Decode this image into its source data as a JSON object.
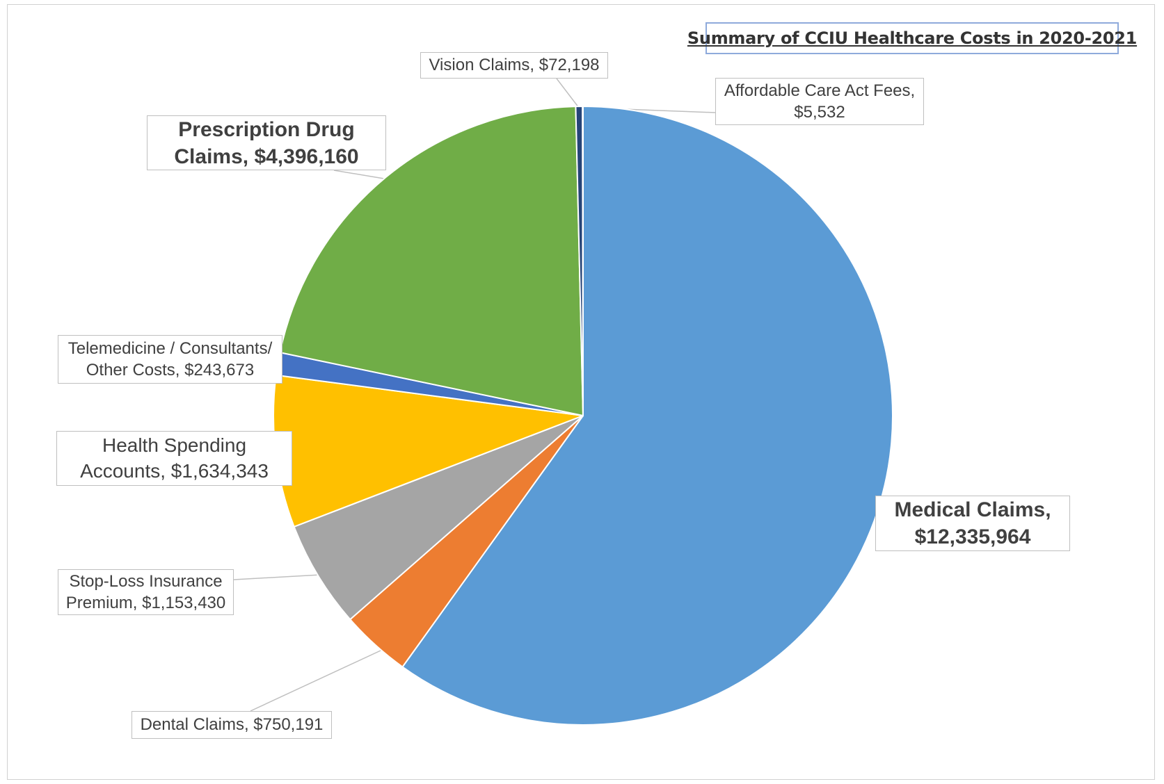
{
  "chart_data": {
    "type": "pie",
    "title": "Summary of CCIU Healthcare Costs in 2020-2021",
    "slices": [
      {
        "name": "Medical Claims",
        "value": 12335964,
        "value_label": "$12,335,964",
        "label": "Medical Claims,\n$12,335,964",
        "color": "#5b9bd5"
      },
      {
        "name": "Dental Claims",
        "value": 750191,
        "value_label": "$750,191",
        "label": "Dental Claims, $750,191",
        "color": "#ed7d31"
      },
      {
        "name": "Stop-Loss Insurance Premium",
        "value": 1153430,
        "value_label": "$1,153,430",
        "label": "Stop-Loss Insurance\nPremium, $1,153,430",
        "color": "#a5a5a5"
      },
      {
        "name": "Health Spending Accounts",
        "value": 1634343,
        "value_label": "$1,634,343",
        "label": "Health Spending\nAccounts, $1,634,343",
        "color": "#ffc000"
      },
      {
        "name": "Telemedicine / Consultants/ Other Costs",
        "value": 243673,
        "value_label": "$243,673",
        "label": "Telemedicine / Consultants/\nOther Costs, $243,673",
        "color": "#4472c4"
      },
      {
        "name": "Prescription Drug Claims",
        "value": 4396160,
        "value_label": "$4,396,160",
        "label": "Prescription Drug\nClaims, $4,396,160",
        "color": "#70ad47"
      },
      {
        "name": "Vision Claims",
        "value": 72198,
        "value_label": "$72,198",
        "label": "Vision Claims, $72,198",
        "color": "#264478"
      },
      {
        "name": "Affordable Care Act Fees",
        "value": 5532,
        "value_label": "$5,532",
        "label": "Affordable Care Act Fees,\n$5,532",
        "color": "#9e480e"
      }
    ]
  }
}
